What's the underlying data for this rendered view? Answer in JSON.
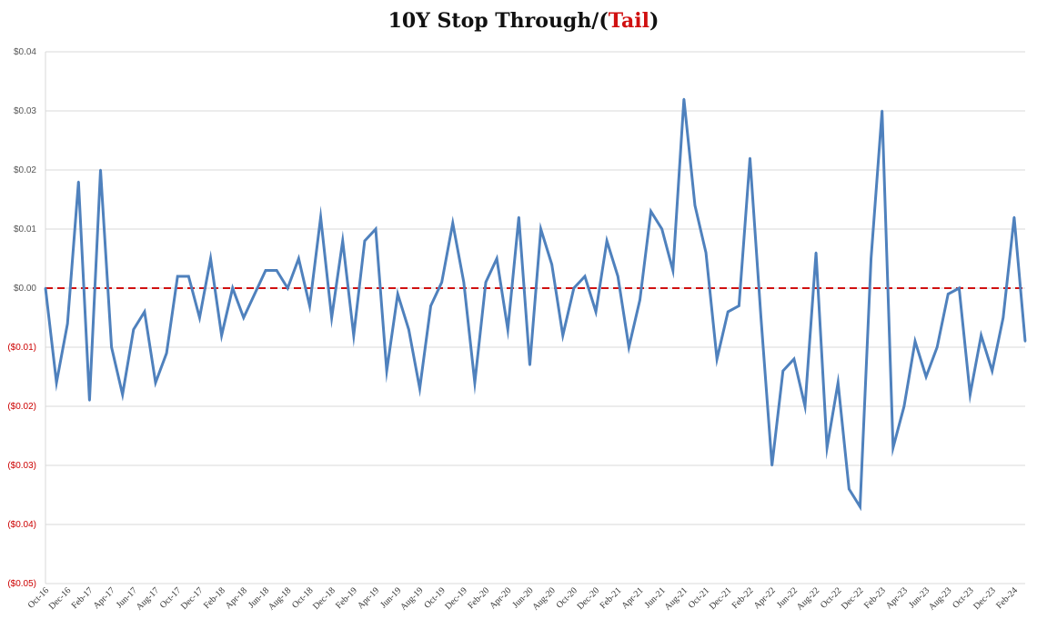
{
  "chart_data": {
    "type": "line",
    "title_main": "10Y Stop Through/(",
    "title_tail": "Tail",
    "title_close": ")",
    "ylim": [
      -0.05,
      0.04
    ],
    "yticks": [
      {
        "value": 0.04,
        "label": "$0.04"
      },
      {
        "value": 0.03,
        "label": "$0.03"
      },
      {
        "value": 0.02,
        "label": "$0.02"
      },
      {
        "value": 0.01,
        "label": "$0.01"
      },
      {
        "value": 0.0,
        "label": "$0.00"
      },
      {
        "value": -0.01,
        "label": "($0.01)"
      },
      {
        "value": -0.02,
        "label": "($0.02)"
      },
      {
        "value": -0.03,
        "label": "($0.03)"
      },
      {
        "value": -0.04,
        "label": "($0.04)"
      },
      {
        "value": -0.05,
        "label": "($0.05)"
      }
    ],
    "xticks": [
      {
        "index": 0,
        "label": "Oct-16"
      },
      {
        "index": 2,
        "label": "Dec-16"
      },
      {
        "index": 4,
        "label": "Feb-17"
      },
      {
        "index": 6,
        "label": "Apr-17"
      },
      {
        "index": 8,
        "label": "Jun-17"
      },
      {
        "index": 10,
        "label": "Aug-17"
      },
      {
        "index": 12,
        "label": "Oct-17"
      },
      {
        "index": 14,
        "label": "Dec-17"
      },
      {
        "index": 16,
        "label": "Feb-18"
      },
      {
        "index": 18,
        "label": "Apr-18"
      },
      {
        "index": 20,
        "label": "Jun-18"
      },
      {
        "index": 22,
        "label": "Aug-18"
      },
      {
        "index": 24,
        "label": "Oct-18"
      },
      {
        "index": 26,
        "label": "Dec-18"
      },
      {
        "index": 28,
        "label": "Feb-19"
      },
      {
        "index": 30,
        "label": "Apr-19"
      },
      {
        "index": 32,
        "label": "Jun-19"
      },
      {
        "index": 34,
        "label": "Aug-19"
      },
      {
        "index": 36,
        "label": "Oct-19"
      },
      {
        "index": 38,
        "label": "Dec-19"
      },
      {
        "index": 40,
        "label": "Feb-20"
      },
      {
        "index": 42,
        "label": "Apr-20"
      },
      {
        "index": 44,
        "label": "Jun-20"
      },
      {
        "index": 46,
        "label": "Aug-20"
      },
      {
        "index": 48,
        "label": "Oct-20"
      },
      {
        "index": 50,
        "label": "Dec-20"
      },
      {
        "index": 52,
        "label": "Feb-21"
      },
      {
        "index": 54,
        "label": "Apr-21"
      },
      {
        "index": 56,
        "label": "Jun-21"
      },
      {
        "index": 58,
        "label": "Aug-21"
      },
      {
        "index": 60,
        "label": "Oct-21"
      },
      {
        "index": 62,
        "label": "Dec-21"
      },
      {
        "index": 64,
        "label": "Feb-22"
      },
      {
        "index": 66,
        "label": "Apr-22"
      },
      {
        "index": 68,
        "label": "Jun-22"
      },
      {
        "index": 70,
        "label": "Aug-22"
      },
      {
        "index": 72,
        "label": "Oct-22"
      },
      {
        "index": 74,
        "label": "Dec-22"
      },
      {
        "index": 76,
        "label": "Feb-23"
      },
      {
        "index": 78,
        "label": "Apr-23"
      },
      {
        "index": 80,
        "label": "Jun-23"
      },
      {
        "index": 82,
        "label": "Aug-23"
      },
      {
        "index": 84,
        "label": "Oct-23"
      },
      {
        "index": 86,
        "label": "Dec-23"
      },
      {
        "index": 88,
        "label": "Feb-24"
      }
    ],
    "series": [
      {
        "values": [
          0.0,
          -0.016,
          -0.006,
          0.018,
          -0.019,
          0.02,
          -0.01,
          -0.018,
          -0.007,
          -0.004,
          -0.016,
          -0.011,
          0.002,
          0.002,
          -0.005,
          0.005,
          -0.008,
          0.0,
          -0.005,
          -0.001,
          0.003,
          0.003,
          0.0,
          0.005,
          -0.003,
          0.012,
          -0.005,
          0.008,
          -0.008,
          0.008,
          0.01,
          -0.014,
          -0.001,
          -0.007,
          -0.017,
          -0.003,
          0.001,
          0.011,
          0.001,
          -0.016,
          0.001,
          0.005,
          -0.007,
          0.012,
          -0.013,
          0.01,
          0.004,
          -0.008,
          0.0,
          0.002,
          -0.004,
          0.008,
          0.002,
          -0.01,
          -0.002,
          0.013,
          0.01,
          0.003,
          0.032,
          0.014,
          0.006,
          -0.012,
          -0.004,
          -0.003,
          0.022,
          -0.005,
          -0.03,
          -0.014,
          -0.012,
          -0.02,
          0.006,
          -0.027,
          -0.016,
          -0.034,
          -0.037,
          0.005,
          0.03,
          -0.027,
          -0.02,
          -0.009,
          -0.015,
          -0.01,
          -0.001,
          0.0,
          -0.018,
          -0.008,
          -0.014,
          -0.005,
          0.012,
          -0.009
        ],
        "color": "#4f81bd"
      }
    ],
    "zero_line_color": "#d01010",
    "negative_label_color": "#cc0000",
    "positive_label_color": "#555555",
    "grid": true
  }
}
